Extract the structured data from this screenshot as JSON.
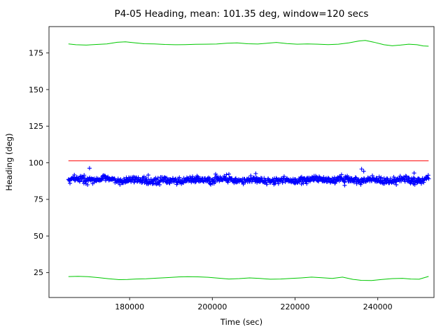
{
  "chart_data": {
    "type": "scatter",
    "title": "P4-05 Heading, mean: 101.35 deg, window=120 secs",
    "xlabel": "Time (sec)",
    "ylabel": "Heading (deg)",
    "xlim": [
      160500,
      253600
    ],
    "ylim": [
      8,
      193
    ],
    "grid": false,
    "legend": "none",
    "xtick_values": [
      180000,
      200000,
      220000,
      240000
    ],
    "xtick_labels": [
      "180000",
      "200000",
      "220000",
      "240000"
    ],
    "ytick_values": [
      25,
      50,
      75,
      100,
      125,
      150,
      175
    ],
    "ytick_labels": [
      "25",
      "50",
      "75",
      "100",
      "125",
      "150",
      "175"
    ],
    "colors": {
      "scatter": "#0000ff",
      "mean_line": "#ff0000",
      "envelope": "#00c800",
      "frame": "#262626",
      "text": "#000000",
      "background": "#ffffff"
    },
    "mean_line": {
      "y": 101.35,
      "x_start": 165200,
      "x_end": 252300
    },
    "heading_scatter": {
      "marker": "+",
      "x_start": 165200,
      "x_end": 252300,
      "n": 850,
      "base": 88.2,
      "wander_amp": 0.7,
      "noise_sigma": 1.1,
      "seed": 42,
      "y_min_clamp": 83.8,
      "y_max_clamp": 93.2,
      "outliers": [
        [
          170300,
          96.3
        ],
        [
          236100,
          95.7
        ],
        [
          236600,
          94.2
        ],
        [
          204000,
          92.3
        ],
        [
          210500,
          92.6
        ],
        [
          248800,
          93.0
        ],
        [
          184500,
          91.6
        ],
        [
          232000,
          84.6
        ],
        [
          244500,
          85.0
        ],
        [
          169000,
          91.5
        ]
      ]
    },
    "upper_envelope": [
      [
        165200,
        181.2
      ],
      [
        167000,
        180.6
      ],
      [
        169500,
        180.4
      ],
      [
        172000,
        180.8
      ],
      [
        174500,
        181.2
      ],
      [
        177000,
        182.3
      ],
      [
        179000,
        182.6
      ],
      [
        181000,
        182.0
      ],
      [
        183500,
        181.3
      ],
      [
        186000,
        181.2
      ],
      [
        188500,
        180.8
      ],
      [
        191000,
        180.6
      ],
      [
        193500,
        180.7
      ],
      [
        196000,
        180.9
      ],
      [
        198500,
        181.0
      ],
      [
        201000,
        181.1
      ],
      [
        203500,
        181.6
      ],
      [
        206000,
        181.9
      ],
      [
        208500,
        181.3
      ],
      [
        211000,
        181.1
      ],
      [
        213500,
        181.7
      ],
      [
        215500,
        182.2
      ],
      [
        218000,
        181.4
      ],
      [
        220500,
        181.0
      ],
      [
        223000,
        181.2
      ],
      [
        225500,
        181.0
      ],
      [
        228000,
        180.7
      ],
      [
        230500,
        181.0
      ],
      [
        233000,
        181.9
      ],
      [
        235500,
        183.2
      ],
      [
        237000,
        183.6
      ],
      [
        239000,
        182.4
      ],
      [
        241500,
        180.6
      ],
      [
        243500,
        179.9
      ],
      [
        245500,
        180.4
      ],
      [
        247500,
        181.0
      ],
      [
        249500,
        180.6
      ],
      [
        251000,
        179.8
      ],
      [
        252300,
        179.6
      ]
    ],
    "lower_envelope": [
      [
        165200,
        22.3
      ],
      [
        167500,
        22.5
      ],
      [
        170000,
        22.2
      ],
      [
        172500,
        21.6
      ],
      [
        175000,
        20.8
      ],
      [
        177500,
        20.2
      ],
      [
        179500,
        20.3
      ],
      [
        181500,
        20.6
      ],
      [
        184000,
        20.8
      ],
      [
        186500,
        21.2
      ],
      [
        189000,
        21.6
      ],
      [
        191500,
        22.0
      ],
      [
        194000,
        22.2
      ],
      [
        196500,
        22.1
      ],
      [
        199000,
        21.8
      ],
      [
        201500,
        21.2
      ],
      [
        204000,
        20.6
      ],
      [
        206500,
        20.9
      ],
      [
        209000,
        21.4
      ],
      [
        211500,
        21.0
      ],
      [
        214000,
        20.5
      ],
      [
        216500,
        20.6
      ],
      [
        219000,
        21.0
      ],
      [
        221500,
        21.4
      ],
      [
        224000,
        21.9
      ],
      [
        226500,
        21.5
      ],
      [
        229000,
        21.0
      ],
      [
        231500,
        21.9
      ],
      [
        234000,
        20.4
      ],
      [
        236000,
        19.7
      ],
      [
        238500,
        19.6
      ],
      [
        241000,
        20.3
      ],
      [
        243500,
        20.9
      ],
      [
        246000,
        21.1
      ],
      [
        248000,
        20.6
      ],
      [
        250000,
        20.5
      ],
      [
        252300,
        22.4
      ]
    ]
  }
}
